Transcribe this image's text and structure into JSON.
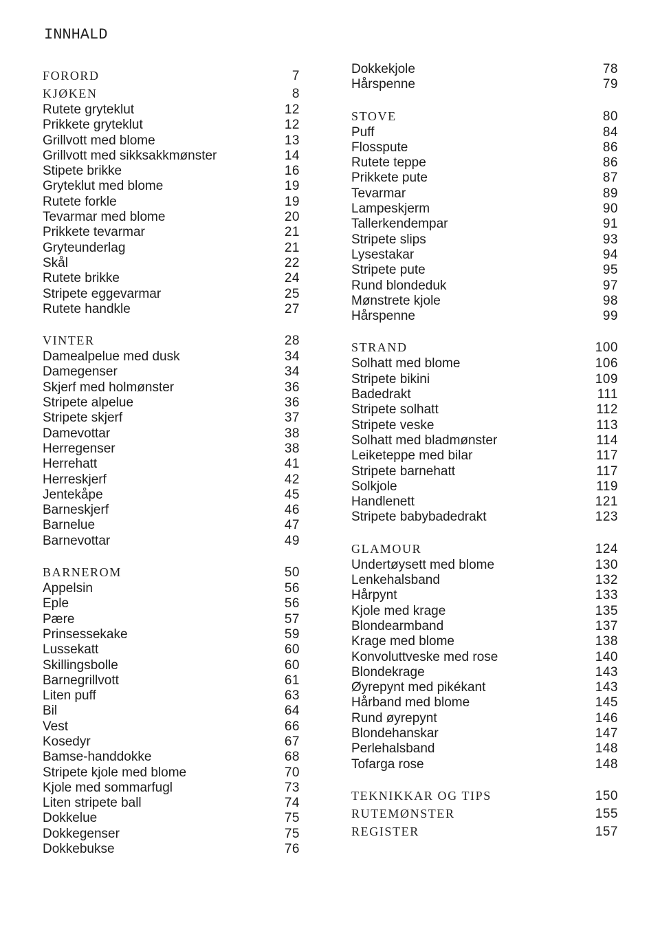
{
  "title": "INNHALD",
  "columns": [
    {
      "sections": [
        {
          "headings": [
            {
              "label": "FORORD",
              "page": "7"
            },
            {
              "label": "KJØKEN",
              "page": "8"
            }
          ],
          "items": [
            {
              "label": "Rutete gryteklut",
              "page": "12"
            },
            {
              "label": "Prikkete gryteklut",
              "page": "12"
            },
            {
              "label": "Grillvott med blome",
              "page": "13"
            },
            {
              "label": "Grillvott med sikksakkmønster",
              "page": "14"
            },
            {
              "label": "Stipete brikke",
              "page": "16"
            },
            {
              "label": "Gryteklut med blome",
              "page": "19"
            },
            {
              "label": "Rutete forkle",
              "page": "19"
            },
            {
              "label": "Tevarmar med blome",
              "page": "20"
            },
            {
              "label": "Prikkete tevarmar",
              "page": "21"
            },
            {
              "label": "Gryteunderlag",
              "page": "21"
            },
            {
              "label": "Skål",
              "page": "22"
            },
            {
              "label": "Rutete brikke",
              "page": "24"
            },
            {
              "label": "Stripete eggevarmar",
              "page": "25"
            },
            {
              "label": "Rutete handkle",
              "page": "27"
            }
          ]
        },
        {
          "headings": [
            {
              "label": "VINTER",
              "page": "28"
            }
          ],
          "items": [
            {
              "label": "Damealpelue med dusk",
              "page": "34"
            },
            {
              "label": "Damegenser",
              "page": "34"
            },
            {
              "label": "Skjerf med holmønster",
              "page": "36"
            },
            {
              "label": "Stripete alpelue",
              "page": "36"
            },
            {
              "label": "Stripete skjerf",
              "page": "37"
            },
            {
              "label": "Damevottar",
              "page": "38"
            },
            {
              "label": "Herregenser",
              "page": "38"
            },
            {
              "label": "Herrehatt",
              "page": "41"
            },
            {
              "label": "Herreskjerf",
              "page": "42"
            },
            {
              "label": "Jentekåpe",
              "page": "45"
            },
            {
              "label": "Barneskjerf",
              "page": "46"
            },
            {
              "label": "Barnelue",
              "page": "47"
            },
            {
              "label": "Barnevottar",
              "page": "49"
            }
          ]
        },
        {
          "headings": [
            {
              "label": "BARNEROM",
              "page": "50"
            }
          ],
          "items": [
            {
              "label": "Appelsin",
              "page": "56"
            },
            {
              "label": "Eple",
              "page": "56"
            },
            {
              "label": "Pære",
              "page": "57"
            },
            {
              "label": "Prinsessekake",
              "page": "59"
            },
            {
              "label": "Lussekatt",
              "page": "60"
            },
            {
              "label": "Skillingsbolle",
              "page": "60"
            },
            {
              "label": "Barnegrillvott",
              "page": "61"
            },
            {
              "label": "Liten puff",
              "page": "63"
            },
            {
              "label": "Bil",
              "page": "64"
            },
            {
              "label": "Vest",
              "page": "66"
            },
            {
              "label": "Kosedyr",
              "page": "67"
            },
            {
              "label": "Bamse-handdokke",
              "page": "68"
            },
            {
              "label": "Stripete kjole med blome",
              "page": "70"
            },
            {
              "label": "Kjole med sommarfugl",
              "page": "73"
            },
            {
              "label": "Liten stripete ball",
              "page": "74"
            },
            {
              "label": "Dokkelue",
              "page": "75"
            },
            {
              "label": "Dokkegenser",
              "page": "75"
            },
            {
              "label": "Dokkebukse",
              "page": "76"
            }
          ]
        }
      ]
    },
    {
      "sections": [
        {
          "headings": [],
          "items": [
            {
              "label": "Dokkekjole",
              "page": "78"
            },
            {
              "label": "Hårspenne",
              "page": "79"
            }
          ]
        },
        {
          "headings": [
            {
              "label": "STOVE",
              "page": "80"
            }
          ],
          "items": [
            {
              "label": "Puff",
              "page": "84"
            },
            {
              "label": "Flosspute",
              "page": "86"
            },
            {
              "label": "Rutete teppe",
              "page": "86"
            },
            {
              "label": "Prikkete pute",
              "page": "87"
            },
            {
              "label": "Tevarmar",
              "page": "89"
            },
            {
              "label": "Lampeskjerm",
              "page": "90"
            },
            {
              "label": "Tallerkendempar",
              "page": "91"
            },
            {
              "label": "Stripete slips",
              "page": "93"
            },
            {
              "label": "Lysestakar",
              "page": "94"
            },
            {
              "label": "Stripete pute",
              "page": "95"
            },
            {
              "label": "Rund blondeduk",
              "page": "97"
            },
            {
              "label": "Mønstrete kjole",
              "page": "98"
            },
            {
              "label": "Hårspenne",
              "page": "99"
            }
          ]
        },
        {
          "headings": [
            {
              "label": "STRAND",
              "page": "100"
            }
          ],
          "items": [
            {
              "label": "Solhatt med blome",
              "page": "106"
            },
            {
              "label": "Stripete bikini",
              "page": "109"
            },
            {
              "label": "Badedrakt",
              "page": "111"
            },
            {
              "label": "Stripete solhatt",
              "page": "112"
            },
            {
              "label": "Stripete veske",
              "page": "113"
            },
            {
              "label": "Solhatt med bladmønster",
              "page": "114"
            },
            {
              "label": "Leiketeppe med bilar",
              "page": "117"
            },
            {
              "label": "Stripete barnehatt",
              "page": "117"
            },
            {
              "label": "Solkjole",
              "page": "119"
            },
            {
              "label": "Handlenett",
              "page": "121"
            },
            {
              "label": "Stripete babybadedrakt",
              "page": "123"
            }
          ]
        },
        {
          "headings": [
            {
              "label": "GLAMOUR",
              "page": "124"
            }
          ],
          "items": [
            {
              "label": "Undertøysett med blome",
              "page": "130"
            },
            {
              "label": "Lenkehalsband",
              "page": "132"
            },
            {
              "label": "Hårpynt",
              "page": "133"
            },
            {
              "label": "Kjole med krage",
              "page": "135"
            },
            {
              "label": "Blondearmband",
              "page": "137"
            },
            {
              "label": "Krage med blome",
              "page": "138"
            },
            {
              "label": "Konvoluttveske med rose",
              "page": "140"
            },
            {
              "label": "Blondekrage",
              "page": "143"
            },
            {
              "label": "Øyrepynt med pikékant",
              "page": "143"
            },
            {
              "label": "Hårband med blome",
              "page": "145"
            },
            {
              "label": "Rund øyrepynt",
              "page": "146"
            },
            {
              "label": "Blondehanskar",
              "page": "147"
            },
            {
              "label": "Perlehalsband",
              "page": "148"
            },
            {
              "label": "Tofarga rose",
              "page": "148"
            }
          ]
        },
        {
          "headings": [
            {
              "label": "TEKNIKKAR OG TIPS",
              "page": "150"
            },
            {
              "label": "RUTEMØNSTER",
              "page": "155"
            },
            {
              "label": "REGISTER",
              "page": "157"
            }
          ],
          "items": []
        }
      ]
    }
  ]
}
